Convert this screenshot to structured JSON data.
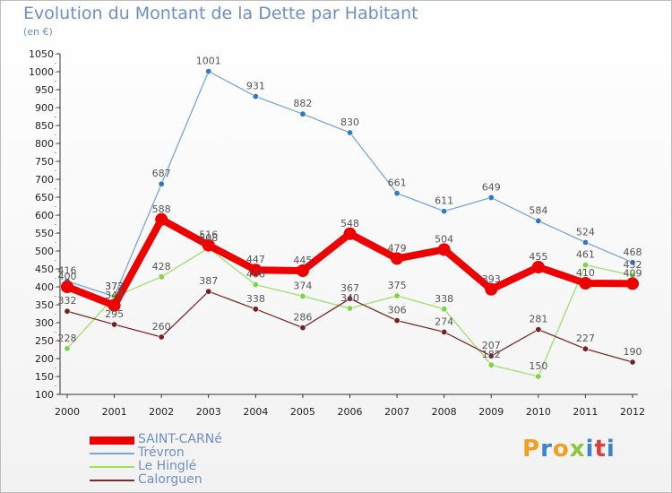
{
  "chart_data": {
    "type": "line",
    "title": "Evolution du Montant de la Dette par Habitant",
    "subtitle": "(en €)",
    "xlabel": "",
    "ylabel": "",
    "x": [
      "2000",
      "2001",
      "2002",
      "2003",
      "2004",
      "2005",
      "2006",
      "2007",
      "2008",
      "2009",
      "2010",
      "2011",
      "2012"
    ],
    "ylim": [
      100,
      1050
    ],
    "yticks": [
      100,
      150,
      200,
      250,
      300,
      350,
      400,
      450,
      500,
      550,
      600,
      650,
      700,
      750,
      800,
      850,
      900,
      950,
      1000,
      1050
    ],
    "grid": false,
    "legend_position": "bottom-left",
    "series": [
      {
        "name": "SAINT-CARNé",
        "color": "#ee0000",
        "marker": "#ee0000",
        "values": [
          400,
          348,
          588,
          516,
          447,
          445,
          548,
          479,
          504,
          393,
          455,
          410,
          409
        ]
      },
      {
        "name": "Trévron",
        "color": "#7aa6d8",
        "marker": "#2f78c4",
        "values": [
          416,
          373,
          687,
          1001,
          931,
          882,
          830,
          661,
          611,
          649,
          584,
          524,
          468
        ]
      },
      {
        "name": "Le Hinglé",
        "color": "#9ee06a",
        "marker": "#7ed348",
        "values": [
          228,
          372,
          428,
          508,
          406,
          374,
          340,
          375,
          338,
          182,
          150,
          461,
          432
        ]
      },
      {
        "name": "Calorguen",
        "color": "#7a2e2e",
        "marker": "#7a1f1f",
        "values": [
          332,
          295,
          260,
          387,
          338,
          286,
          367,
          306,
          274,
          207,
          281,
          227,
          190
        ]
      }
    ]
  },
  "logo": {
    "text": "Proxiti"
  }
}
